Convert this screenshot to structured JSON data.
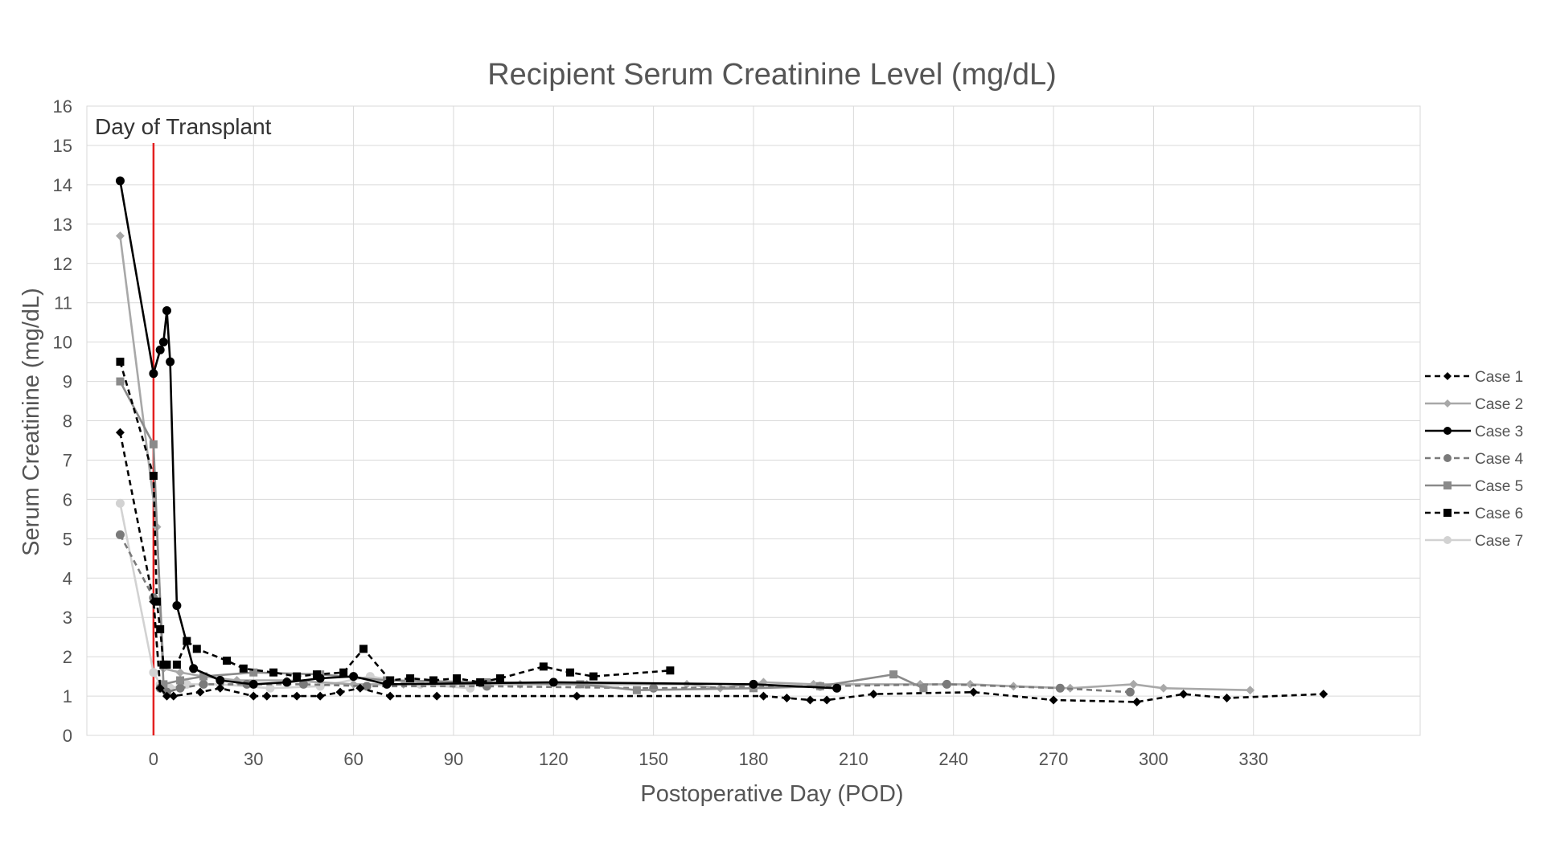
{
  "chart_data": {
    "type": "line",
    "title": "Recipient Serum Creatinine Level (mg/dL)",
    "xlabel": "Postoperative Day (POD)",
    "ylabel": "Serum Creatinine (mg/dL)",
    "xlim": [
      -20,
      380
    ],
    "ylim": [
      0,
      16
    ],
    "xticks": [
      0,
      30,
      60,
      90,
      120,
      150,
      180,
      210,
      240,
      270,
      300,
      330
    ],
    "yticks": [
      0,
      1,
      2,
      3,
      4,
      5,
      6,
      7,
      8,
      9,
      10,
      11,
      12,
      13,
      14,
      15,
      16
    ],
    "grid": true,
    "legend_position": "right",
    "annotation": {
      "text": "Day of Transplant",
      "x": 0,
      "line_color": "#e32020"
    },
    "series": [
      {
        "name": "Case 1",
        "color": "#000000",
        "dash": true,
        "marker": "diamond",
        "x": [
          -10,
          0,
          2,
          4,
          6,
          14,
          20,
          30,
          34,
          43,
          50,
          56,
          62,
          71,
          85,
          127,
          183,
          190,
          197,
          202,
          216,
          246,
          270,
          295,
          309,
          322,
          351
        ],
        "y": [
          7.7,
          3.4,
          1.2,
          1.0,
          1.0,
          1.1,
          1.2,
          1.0,
          1.0,
          1.0,
          1.0,
          1.1,
          1.2,
          1.0,
          1.0,
          1.0,
          1.0,
          0.95,
          0.9,
          0.9,
          1.05,
          1.1,
          0.9,
          0.85,
          1.05,
          0.95,
          1.05
        ]
      },
      {
        "name": "Case 2",
        "color": "#a8a8a8",
        "dash": false,
        "marker": "diamond",
        "x": [
          -10,
          1,
          3,
          8,
          15,
          25,
          40,
          60,
          75,
          90,
          110,
          130,
          160,
          170,
          183,
          198,
          230,
          245,
          258,
          275,
          294,
          303,
          329
        ],
        "y": [
          12.7,
          5.3,
          1.7,
          1.6,
          1.5,
          1.4,
          1.4,
          1.3,
          1.3,
          1.3,
          1.3,
          1.3,
          1.3,
          1.2,
          1.35,
          1.3,
          1.3,
          1.3,
          1.25,
          1.2,
          1.3,
          1.2,
          1.15
        ]
      },
      {
        "name": "Case 3",
        "color": "#000000",
        "dash": false,
        "marker": "circle",
        "x": [
          -10,
          0,
          2,
          3,
          4,
          5,
          7,
          12,
          20,
          30,
          40,
          50,
          60,
          70,
          120,
          180,
          205
        ],
        "y": [
          14.1,
          9.2,
          9.8,
          10.0,
          10.8,
          9.5,
          3.3,
          1.7,
          1.4,
          1.3,
          1.35,
          1.45,
          1.5,
          1.3,
          1.35,
          1.3,
          1.2
        ]
      },
      {
        "name": "Case 4",
        "color": "#7a7a7a",
        "dash": true,
        "marker": "circle",
        "x": [
          -10,
          0,
          2,
          4,
          8,
          15,
          28,
          45,
          64,
          100,
          150,
          200,
          238,
          272,
          293
        ],
        "y": [
          5.1,
          3.5,
          1.2,
          1.1,
          1.2,
          1.3,
          1.3,
          1.3,
          1.25,
          1.25,
          1.2,
          1.25,
          1.3,
          1.2,
          1.1
        ]
      },
      {
        "name": "Case 5",
        "color": "#8a8a8a",
        "dash": false,
        "marker": "square",
        "x": [
          -10,
          0,
          3,
          8,
          15,
          30,
          50,
          70,
          100,
          128,
          145,
          180,
          200,
          222,
          231
        ],
        "y": [
          9.0,
          7.4,
          1.3,
          1.4,
          1.5,
          1.6,
          1.55,
          1.4,
          1.35,
          1.3,
          1.15,
          1.2,
          1.25,
          1.55,
          1.2
        ]
      },
      {
        "name": "Case 6",
        "color": "#000000",
        "dash": true,
        "marker": "square",
        "x": [
          -10,
          0,
          1,
          2,
          3,
          4,
          7,
          10,
          13,
          22,
          27,
          36,
          43,
          49,
          57,
          63,
          71,
          77,
          84,
          91,
          98,
          104,
          117,
          125,
          132,
          155
        ],
        "y": [
          9.5,
          6.6,
          3.4,
          2.7,
          1.8,
          1.8,
          1.8,
          2.4,
          2.2,
          1.9,
          1.7,
          1.6,
          1.5,
          1.55,
          1.6,
          2.2,
          1.4,
          1.45,
          1.4,
          1.45,
          1.35,
          1.45,
          1.75,
          1.6,
          1.5,
          1.65
        ]
      },
      {
        "name": "Case 7",
        "color": "#d2d2d2",
        "dash": false,
        "marker": "circle",
        "x": [
          -10,
          0,
          2,
          5,
          10,
          20,
          35,
          50,
          65,
          80,
          95
        ],
        "y": [
          5.9,
          1.6,
          1.3,
          1.2,
          1.3,
          1.3,
          1.2,
          1.25,
          1.5,
          1.3,
          1.2
        ]
      }
    ]
  }
}
